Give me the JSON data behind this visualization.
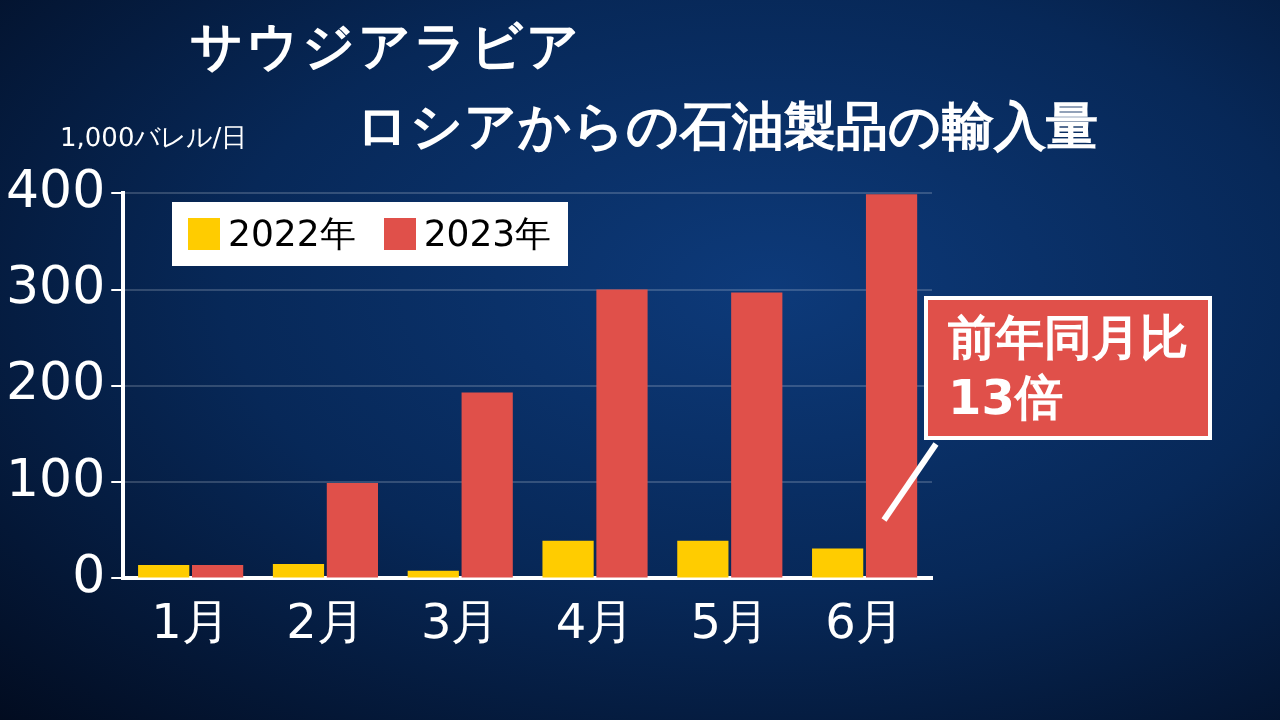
{
  "chart_data": {
    "type": "bar",
    "title": "サウジアラビア",
    "subtitle": "ロシアからの石油製品の輸入量",
    "ylabel": "1,000バレル/日",
    "categories": [
      "1月",
      "2月",
      "3月",
      "4月",
      "5月",
      "6月"
    ],
    "series": [
      {
        "name": "2022年",
        "color": "#ffcc00",
        "values": [
          14,
          15,
          8,
          39,
          39,
          31
        ]
      },
      {
        "name": "2023年",
        "color": "#e0504a",
        "values": [
          14,
          99,
          193,
          300,
          297,
          399
        ]
      }
    ],
    "ylim": [
      0,
      400
    ],
    "yticks": [
      0,
      100,
      200,
      300,
      400
    ],
    "grid": "y",
    "legend": "top left",
    "annotations": [
      "前年同月比\n13倍"
    ]
  }
}
